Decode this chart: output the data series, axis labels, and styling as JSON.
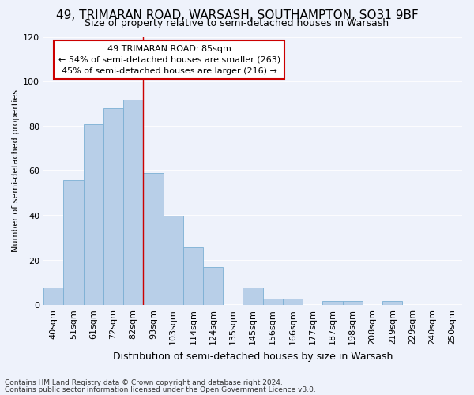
{
  "title": "49, TRIMARAN ROAD, WARSASH, SOUTHAMPTON, SO31 9BF",
  "subtitle": "Size of property relative to semi-detached houses in Warsash",
  "xlabel": "Distribution of semi-detached houses by size in Warsash",
  "ylabel": "Number of semi-detached properties",
  "categories": [
    "40sqm",
    "51sqm",
    "61sqm",
    "72sqm",
    "82sqm",
    "93sqm",
    "103sqm",
    "114sqm",
    "124sqm",
    "135sqm",
    "145sqm",
    "156sqm",
    "166sqm",
    "177sqm",
    "187sqm",
    "198sqm",
    "208sqm",
    "219sqm",
    "229sqm",
    "240sqm",
    "250sqm"
  ],
  "values": [
    8,
    56,
    81,
    88,
    92,
    59,
    40,
    26,
    17,
    0,
    8,
    3,
    3,
    0,
    2,
    2,
    0,
    2,
    0,
    0,
    0
  ],
  "bar_color": "#b8cfe8",
  "bar_edge_color": "#7bafd4",
  "property_label": "49 TRIMARAN ROAD: 85sqm",
  "annotation_line1": "← 54% of semi-detached houses are smaller (263)",
  "annotation_line2": "45% of semi-detached houses are larger (216) →",
  "vline_x_index": 4.5,
  "ylim": [
    0,
    120
  ],
  "yticks": [
    0,
    20,
    40,
    60,
    80,
    100,
    120
  ],
  "footnote1": "Contains HM Land Registry data © Crown copyright and database right 2024.",
  "footnote2": "Contains public sector information licensed under the Open Government Licence v3.0.",
  "bg_color": "#eef2fb",
  "grid_color": "#ffffff",
  "annotation_box_color": "#ffffff",
  "annotation_box_edge": "#cc0000",
  "vline_color": "#cc0000",
  "title_fontsize": 11,
  "subtitle_fontsize": 9,
  "xlabel_fontsize": 9,
  "ylabel_fontsize": 8,
  "tick_fontsize": 8,
  "annot_fontsize": 8,
  "footnote_fontsize": 6.5
}
